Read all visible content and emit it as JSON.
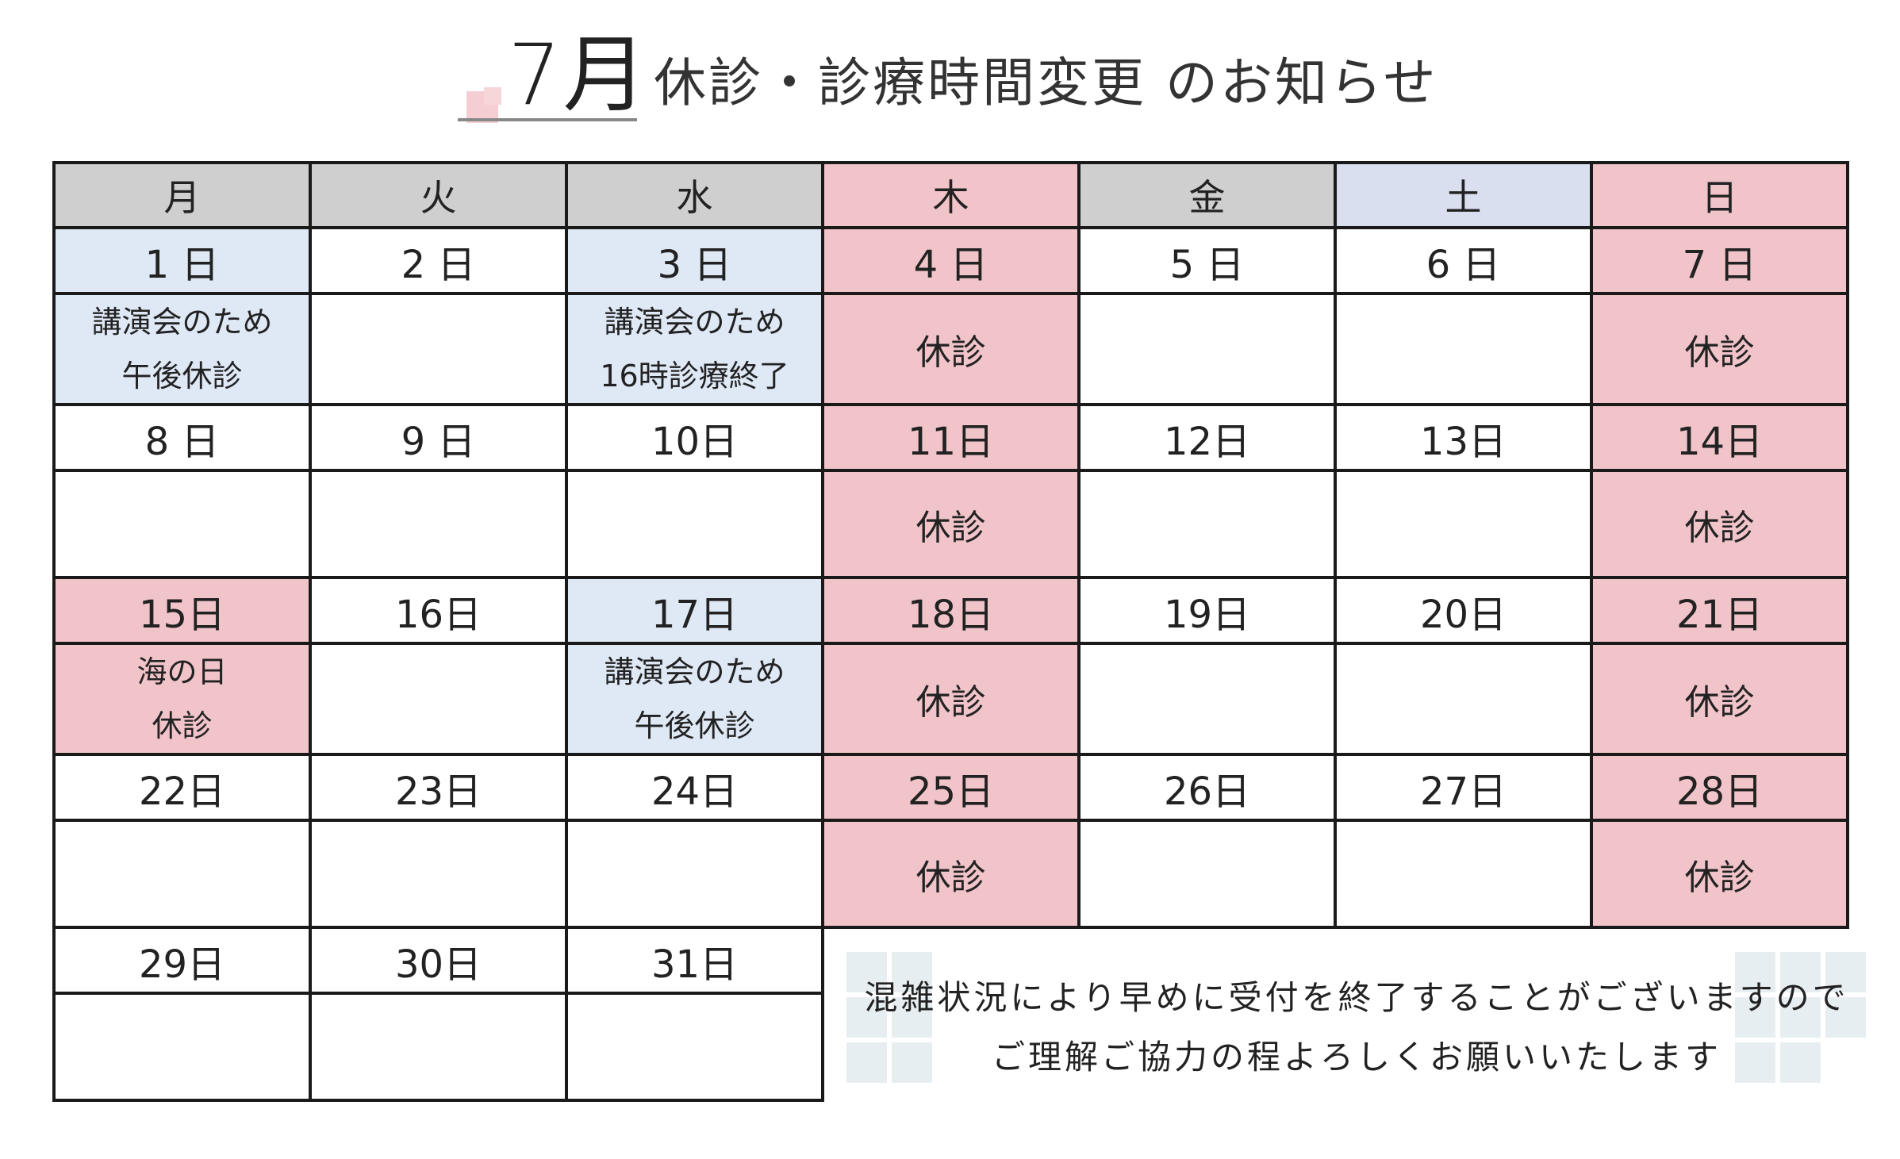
{
  "title": {
    "month": "7月",
    "text": "休診・診療時間変更 のお知らせ"
  },
  "calendar": {
    "weekdays": [
      {
        "label": "月",
        "bg": "gray"
      },
      {
        "label": "火",
        "bg": "gray"
      },
      {
        "label": "水",
        "bg": "gray"
      },
      {
        "label": "木",
        "bg": "pink"
      },
      {
        "label": "金",
        "bg": "gray"
      },
      {
        "label": "土",
        "bg": "lav"
      },
      {
        "label": "日",
        "bg": "pink"
      }
    ],
    "weeks": [
      {
        "days": [
          {
            "date": "1 日",
            "note": [
              "講演会のため",
              "午後休診"
            ],
            "bg": "blue"
          },
          {
            "date": "2 日",
            "note": [],
            "bg": ""
          },
          {
            "date": "3 日",
            "note": [
              "講演会のため",
              "16時診療終了"
            ],
            "bg": "blue"
          },
          {
            "date": "4 日",
            "note": [
              "休診"
            ],
            "bg": "pink"
          },
          {
            "date": "5 日",
            "note": [],
            "bg": ""
          },
          {
            "date": "6 日",
            "note": [],
            "bg": ""
          },
          {
            "date": "7 日",
            "note": [
              "休診"
            ],
            "bg": "pink"
          }
        ]
      },
      {
        "days": [
          {
            "date": "8 日",
            "note": [],
            "bg": ""
          },
          {
            "date": "9 日",
            "note": [],
            "bg": ""
          },
          {
            "date": "10日",
            "note": [],
            "bg": ""
          },
          {
            "date": "11日",
            "note": [
              "休診"
            ],
            "bg": "pink"
          },
          {
            "date": "12日",
            "note": [],
            "bg": ""
          },
          {
            "date": "13日",
            "note": [],
            "bg": ""
          },
          {
            "date": "14日",
            "note": [
              "休診"
            ],
            "bg": "pink"
          }
        ]
      },
      {
        "days": [
          {
            "date": "15日",
            "note": [
              "海の日",
              "休診"
            ],
            "bg": "pink"
          },
          {
            "date": "16日",
            "note": [],
            "bg": ""
          },
          {
            "date": "17日",
            "note": [
              "講演会のため",
              "午後休診"
            ],
            "bg": "blue"
          },
          {
            "date": "18日",
            "note": [
              "休診"
            ],
            "bg": "pink"
          },
          {
            "date": "19日",
            "note": [],
            "bg": ""
          },
          {
            "date": "20日",
            "note": [],
            "bg": ""
          },
          {
            "date": "21日",
            "note": [
              "休診"
            ],
            "bg": "pink"
          }
        ]
      },
      {
        "days": [
          {
            "date": "22日",
            "note": [],
            "bg": ""
          },
          {
            "date": "23日",
            "note": [],
            "bg": ""
          },
          {
            "date": "24日",
            "note": [],
            "bg": ""
          },
          {
            "date": "25日",
            "note": [
              "休診"
            ],
            "bg": "pink"
          },
          {
            "date": "26日",
            "note": [],
            "bg": ""
          },
          {
            "date": "27日",
            "note": [],
            "bg": ""
          },
          {
            "date": "28日",
            "note": [
              "休診"
            ],
            "bg": "pink"
          }
        ]
      },
      {
        "days": [
          {
            "date": "29日",
            "note": [],
            "bg": ""
          },
          {
            "date": "30日",
            "note": [],
            "bg": ""
          },
          {
            "date": "31日",
            "note": [],
            "bg": ""
          }
        ]
      }
    ]
  },
  "notice": {
    "line1": "混雑状況により早めに受付を終了することがございますので",
    "line2": "ご理解ご協力の程よろしくお願いいたします"
  },
  "colors": {
    "gray": "#d0cfcf",
    "pink": "#f1c4c9",
    "blue": "#dfe9f6",
    "lav": "#dadff0"
  }
}
